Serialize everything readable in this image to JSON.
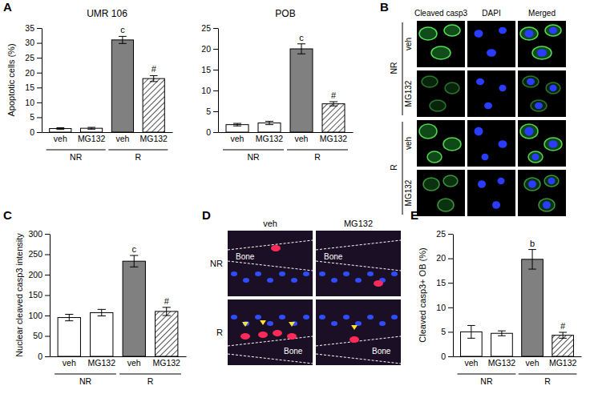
{
  "chart_data": [
    {
      "type": "bar",
      "title": "UMR 106",
      "y_label": "Apoptotic cells (%)",
      "categories": [
        "veh",
        "MG132",
        "veh",
        "MG132"
      ],
      "groups": [
        "NR",
        "NR",
        "R",
        "R"
      ],
      "values": [
        1.2,
        1.3,
        31,
        18
      ],
      "errors": [
        0.3,
        0.3,
        1.2,
        1
      ],
      "annotations": [
        null,
        null,
        "c",
        "#"
      ],
      "colors": [
        "#ffffff",
        "#ffffff",
        "#808080",
        "hatch"
      ],
      "ylim": [
        0,
        35
      ],
      "yticks": [
        0,
        5,
        10,
        15,
        20,
        25,
        30,
        35
      ]
    },
    {
      "type": "bar",
      "title": "POB",
      "categories": [
        "veh",
        "MG132",
        "veh",
        "MG132"
      ],
      "groups": [
        "NR",
        "NR",
        "R",
        "R"
      ],
      "values": [
        1.8,
        2.2,
        20,
        6.8
      ],
      "errors": [
        0.3,
        0.4,
        1.2,
        0.5
      ],
      "annotations": [
        null,
        null,
        "c",
        "#"
      ],
      "colors": [
        "#ffffff",
        "#ffffff",
        "#808080",
        "hatch"
      ],
      "ylim": [
        0,
        25
      ],
      "yticks": [
        0,
        5,
        10,
        15,
        20,
        25
      ]
    },
    {
      "type": "bar",
      "y_label": "Nuclear cleaved casp3 intensity",
      "categories": [
        "veh",
        "MG132",
        "veh",
        "MG132"
      ],
      "groups": [
        "NR",
        "NR",
        "R",
        "R"
      ],
      "values": [
        95,
        107,
        233,
        110
      ],
      "errors": [
        8,
        8,
        14,
        10
      ],
      "annotations": [
        null,
        null,
        "c",
        "#"
      ],
      "colors": [
        "#ffffff",
        "#ffffff",
        "#808080",
        "hatch"
      ],
      "ylim": [
        0,
        300
      ],
      "yticks": [
        0,
        50,
        100,
        150,
        200,
        250,
        300
      ]
    },
    {
      "type": "bar",
      "y_label": "Cleaved casp3+ OB (%)",
      "categories": [
        "veh",
        "MG132",
        "veh",
        "MG132"
      ],
      "groups": [
        "NR",
        "NR",
        "R",
        "R"
      ],
      "values": [
        5,
        4.7,
        19.8,
        4.3
      ],
      "errors": [
        1.3,
        0.5,
        2,
        0.6
      ],
      "annotations": [
        null,
        null,
        "b",
        "#"
      ],
      "colors": [
        "#ffffff",
        "#ffffff",
        "#808080",
        "hatch"
      ],
      "ylim": [
        0,
        25
      ],
      "yticks": [
        0,
        5,
        10,
        15,
        20,
        25
      ]
    }
  ],
  "figure": {
    "panel_labels": [
      "A",
      "B",
      "C",
      "D",
      "E"
    ],
    "panel_b": {
      "columns": [
        "Cleaved casp3",
        "DAPI",
        "Merged"
      ],
      "rows": [
        "veh",
        "MG132",
        "veh",
        "MG132"
      ],
      "groups": [
        "NR",
        "NR",
        "R",
        "R"
      ]
    },
    "panel_d": {
      "columns": [
        "veh",
        "MG132"
      ],
      "rows": [
        "NR",
        "R"
      ],
      "region_label": "Bone"
    }
  }
}
